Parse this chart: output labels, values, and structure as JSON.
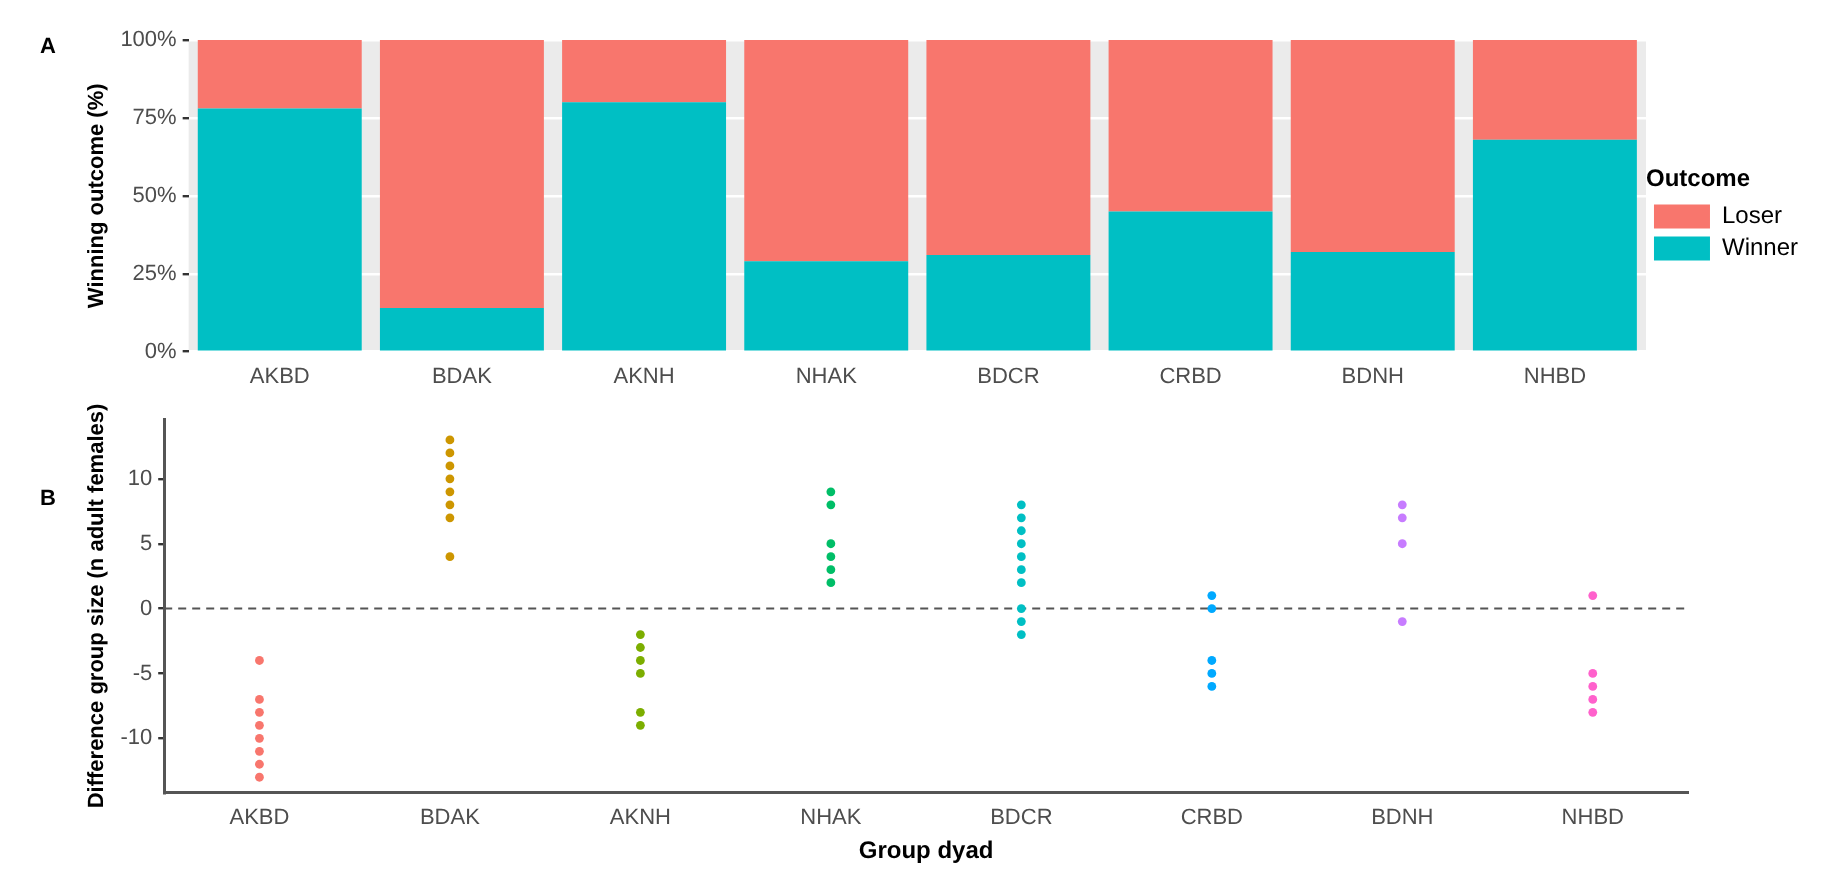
{
  "chart_data": [
    {
      "type": "bar",
      "stacked": true,
      "ylabel": "Winning outcome (%)",
      "legend_title": "Outcome",
      "legend": "right",
      "grid": "y",
      "annotations": [
        "A"
      ],
      "categories": [
        "AKBD",
        "BDAK",
        "AKNH",
        "NHAK",
        "BDCR",
        "CRBD",
        "BDNH",
        "NHBD"
      ],
      "series": [
        {
          "name": "Winner",
          "color": "#00bfc4",
          "values": [
            78,
            14,
            80,
            29,
            31,
            45,
            32,
            68
          ]
        },
        {
          "name": "Loser",
          "color": "#f8766d",
          "values": [
            22,
            86,
            20,
            71,
            69,
            55,
            68,
            32
          ]
        }
      ],
      "ylim": [
        0,
        100
      ],
      "yticks": [
        {
          "value": 0,
          "label": "0%"
        },
        {
          "value": 25,
          "label": "25%"
        },
        {
          "value": 50,
          "label": "50%"
        },
        {
          "value": 75,
          "label": "75%"
        },
        {
          "value": 100,
          "label": "100%"
        }
      ]
    },
    {
      "type": "scatter",
      "xlabel": "Group dyad",
      "ylabel": "Difference group size (n adult females)",
      "annotations": [
        "B"
      ],
      "marker": "circle",
      "grid": false,
      "legend": false,
      "categories": [
        "AKBD",
        "BDAK",
        "AKNH",
        "NHAK",
        "BDCR",
        "CRBD",
        "BDNH",
        "NHBD"
      ],
      "series": [
        {
          "color": "#f8766d",
          "x": [
            "AKBD",
            "AKBD",
            "AKBD",
            "AKBD",
            "AKBD",
            "AKBD",
            "AKBD",
            "AKBD"
          ],
          "values": [
            -4,
            -7,
            -8,
            -9,
            -10,
            -11,
            -12,
            -13
          ]
        },
        {
          "color": "#cd9600",
          "x": [
            "BDAK",
            "BDAK",
            "BDAK",
            "BDAK",
            "BDAK",
            "BDAK",
            "BDAK",
            "BDAK"
          ],
          "values": [
            13,
            12,
            11,
            10,
            9,
            8,
            7,
            4
          ]
        },
        {
          "color": "#7cae00",
          "x": [
            "AKNH",
            "AKNH",
            "AKNH",
            "AKNH",
            "AKNH",
            "AKNH"
          ],
          "values": [
            -2,
            -3,
            -4,
            -5,
            -8,
            -9
          ]
        },
        {
          "color": "#00be67",
          "x": [
            "NHAK",
            "NHAK",
            "NHAK",
            "NHAK",
            "NHAK",
            "NHAK"
          ],
          "values": [
            9,
            8,
            5,
            4,
            3,
            2
          ]
        },
        {
          "color": "#00bfc4",
          "x": [
            "BDCR",
            "BDCR",
            "BDCR",
            "BDCR",
            "BDCR",
            "BDCR",
            "BDCR",
            "BDCR",
            "BDCR",
            "BDCR"
          ],
          "values": [
            8,
            7,
            6,
            5,
            4,
            3,
            2,
            0,
            -1,
            -2
          ]
        },
        {
          "color": "#00a9ff",
          "x": [
            "CRBD",
            "CRBD",
            "CRBD",
            "CRBD",
            "CRBD"
          ],
          "values": [
            1,
            0,
            -4,
            -5,
            -6
          ]
        },
        {
          "color": "#c77cff",
          "x": [
            "BDNH",
            "BDNH",
            "BDNH",
            "BDNH"
          ],
          "values": [
            8,
            7,
            5,
            -1
          ]
        },
        {
          "color": "#ff61cc",
          "x": [
            "NHBD",
            "NHBD",
            "NHBD",
            "NHBD",
            "NHBD"
          ],
          "values": [
            1,
            -5,
            -6,
            -7,
            -8
          ]
        }
      ],
      "ylim": [
        -14.2,
        14.6
      ],
      "yticks": [
        -10,
        -5,
        0,
        5,
        10
      ],
      "ref_lines": [
        {
          "axis": "y",
          "value": 0,
          "color": "#555555",
          "line_style": "dashed"
        }
      ]
    }
  ]
}
